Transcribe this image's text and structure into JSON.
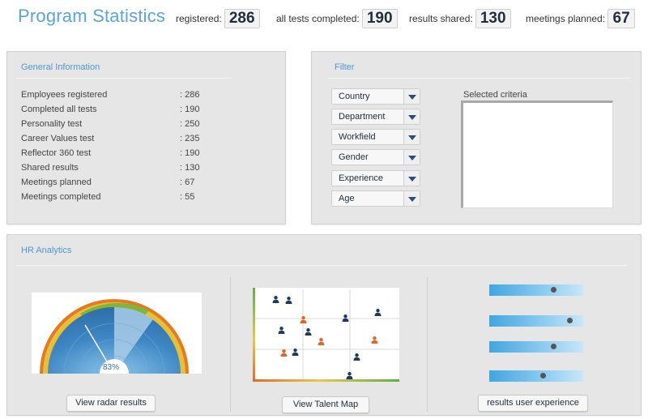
{
  "header": {
    "title": "Program Statistics",
    "stats": [
      {
        "label": "registered:",
        "value": "286"
      },
      {
        "label": "all tests completed:",
        "value": "190"
      },
      {
        "label": "results shared:",
        "value": "130"
      },
      {
        "label": "meetings planned:",
        "value": "67"
      }
    ]
  },
  "general": {
    "title": "General Information",
    "rows": [
      {
        "label": "Employees registered",
        "value": ": 286"
      },
      {
        "label": "Completed all tests",
        "value": ": 190"
      },
      {
        "label": "Personality test",
        "value": ": 250"
      },
      {
        "label": "Career Values test",
        "value": ": 235"
      },
      {
        "label": "Reflector 360 test",
        "value": ": 190"
      },
      {
        "label": "Shared results",
        "value": ": 130"
      },
      {
        "label": "Meetings planned",
        "value": ": 67"
      },
      {
        "label": "Meetings completed",
        "value": ": 55"
      }
    ]
  },
  "filter": {
    "title": "Filter",
    "dropdowns": [
      "Country",
      "Department",
      "Workfield",
      "Gender",
      "Experience",
      "Age"
    ],
    "selected_label": "Selected criteria"
  },
  "hr": {
    "title": "HR Analytics",
    "radar_center_value": "83%",
    "buttons": [
      "View radar results",
      "View Talent Map",
      "results user experience"
    ],
    "sliders": [
      0.7,
      0.88,
      0.7,
      0.58
    ]
  },
  "colors": {
    "accent": "#5aa5d8",
    "panel": "#e6e6e6",
    "person_dark": "#1f3a5c",
    "person_orange": "#e0672a"
  }
}
